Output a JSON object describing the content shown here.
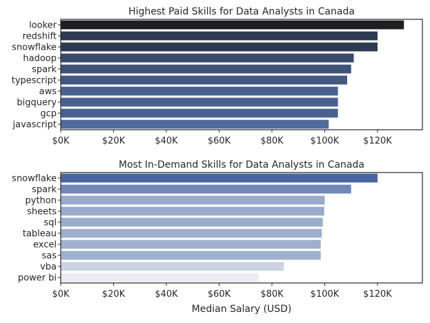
{
  "chart_data": [
    {
      "type": "bar",
      "orientation": "horizontal",
      "title": "Highest Paid Skills for Data Analysts in Canada",
      "xlabel": "",
      "ylabel": "",
      "categories": [
        "looker",
        "redshift",
        "snowflake",
        "hadoop",
        "spark",
        "typescript",
        "aws",
        "bigquery",
        "gcp",
        "javascript"
      ],
      "values": [
        130000,
        120000,
        120000,
        111000,
        110000,
        108500,
        105000,
        105000,
        105000,
        101500
      ],
      "colors": [
        "#1e1f22",
        "#2e3a52",
        "#2e3a52",
        "#394a6c",
        "#3f5277",
        "#43577f",
        "#4a6190",
        "#4a6190",
        "#4a6190",
        "#4e6a9e"
      ],
      "xlim": [
        0,
        137000
      ],
      "xticks": [
        0,
        20000,
        40000,
        60000,
        80000,
        100000,
        120000
      ],
      "xtick_labels": [
        "$0K",
        "$20K",
        "$40K",
        "$60K",
        "$80K",
        "$100K",
        "$120K"
      ],
      "grid": false,
      "legend": "none"
    },
    {
      "type": "bar",
      "orientation": "horizontal",
      "title": "Most In-Demand Skills for Data Analysts in Canada",
      "xlabel": "Median Salary (USD)",
      "ylabel": "",
      "categories": [
        "snowflake",
        "spark",
        "python",
        "sheets",
        "sql",
        "tableau",
        "excel",
        "sas",
        "vba",
        "power bi"
      ],
      "values": [
        120000,
        110000,
        100000,
        99800,
        99300,
        98900,
        98500,
        98500,
        84500,
        75000
      ],
      "colors": [
        "#4a66a0",
        "#7188b6",
        "#9aabcb",
        "#9aabcb",
        "#9cadcc",
        "#9dafcd",
        "#9fb0ce",
        "#9fb0ce",
        "#ccd3e3",
        "#ececf3"
      ],
      "xlim": [
        0,
        137000
      ],
      "xticks": [
        0,
        20000,
        40000,
        60000,
        80000,
        100000,
        120000
      ],
      "xtick_labels": [
        "$0K",
        "$20K",
        "$40K",
        "$60K",
        "$80K",
        "$100K",
        "$120K"
      ],
      "grid": false,
      "legend": "none"
    }
  ]
}
